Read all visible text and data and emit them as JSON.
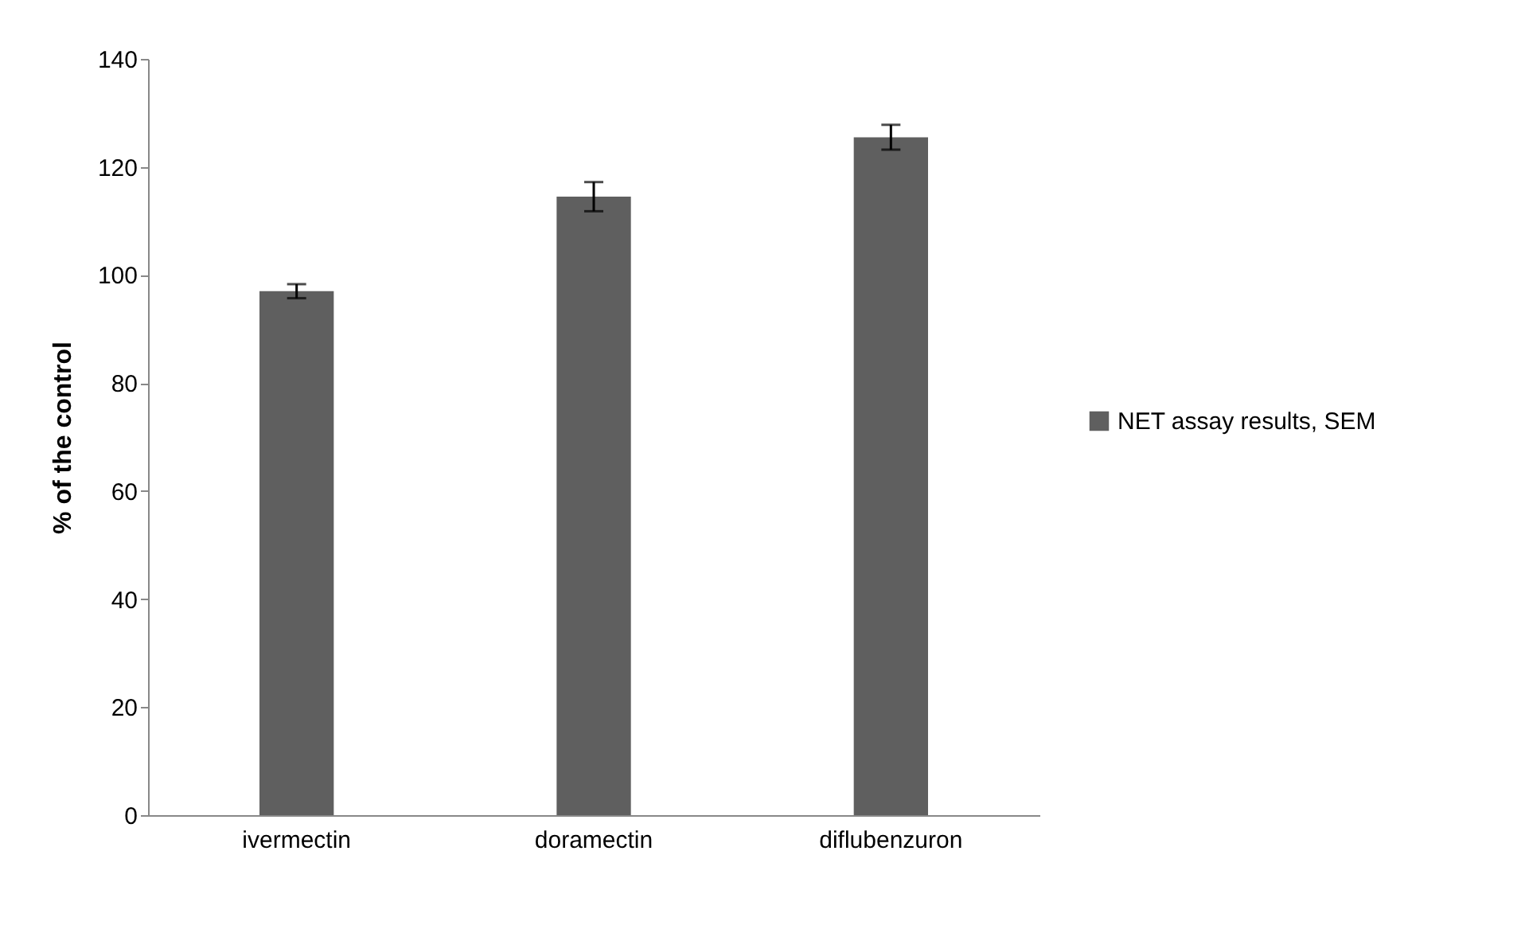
{
  "chart_data": {
    "type": "bar",
    "ylabel": "% of the control",
    "categories": [
      "ivermectin",
      "doramectin",
      "diflubenzuron"
    ],
    "series": [
      {
        "name": "NET assay results, SEM",
        "color": "#5f5f5f",
        "values": [
          97,
          114.5,
          125.5
        ],
        "errors": [
          1.3,
          2.7,
          2.3
        ]
      }
    ],
    "ylim": [
      0,
      140
    ],
    "yticks": [
      0,
      20,
      40,
      60,
      80,
      100,
      120,
      140
    ],
    "grid": false,
    "legend": "right"
  }
}
